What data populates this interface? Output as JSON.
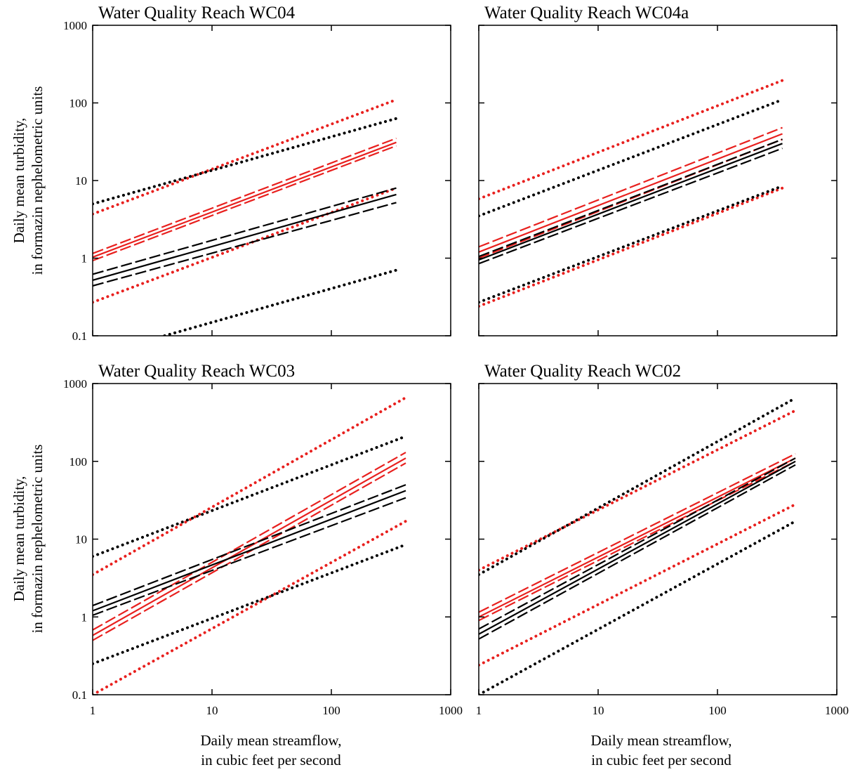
{
  "figure": {
    "ylabel_line1": "Daily mean turbidity,",
    "ylabel_line2": "in formazin nephelometric units",
    "xlabel_line1": "Daily mean streamflow,",
    "xlabel_line2": "in cubic feet per second",
    "colors": {
      "red": "#e8201e",
      "black": "#000000"
    }
  },
  "chart_data": [
    {
      "type": "line",
      "title": "Water Quality Reach WC04",
      "xscale": "log",
      "yscale": "log",
      "xlim": [
        1,
        1000
      ],
      "ylim": [
        0.1,
        1000
      ],
      "xticks": [],
      "yticks": [
        "0.1",
        "1",
        "10",
        "100",
        "1000"
      ],
      "series": [
        {
          "color": "red",
          "style": "dotted",
          "x": [
            1,
            350
          ],
          "y": [
            3.7,
            110
          ]
        },
        {
          "color": "red",
          "style": "dotted",
          "x": [
            1,
            350
          ],
          "y": [
            0.27,
            8
          ]
        },
        {
          "color": "red",
          "style": "dashed",
          "x": [
            1,
            350
          ],
          "y": [
            1.15,
            35
          ]
        },
        {
          "color": "red",
          "style": "dashed",
          "x": [
            1,
            350
          ],
          "y": [
            0.93,
            28
          ]
        },
        {
          "color": "red",
          "style": "solid",
          "x": [
            1,
            350
          ],
          "y": [
            1.03,
            31
          ]
        },
        {
          "color": "black",
          "style": "dotted",
          "x": [
            1,
            350
          ],
          "y": [
            5,
            63
          ]
        },
        {
          "color": "black",
          "style": "dotted",
          "x": [
            4,
            350
          ],
          "y": [
            0.1,
            0.7
          ]
        },
        {
          "color": "black",
          "style": "dashed",
          "x": [
            1,
            350
          ],
          "y": [
            0.62,
            8
          ]
        },
        {
          "color": "black",
          "style": "dashed",
          "x": [
            1,
            350
          ],
          "y": [
            0.44,
            5.2
          ]
        },
        {
          "color": "black",
          "style": "solid",
          "x": [
            1,
            350
          ],
          "y": [
            0.52,
            6.6
          ]
        }
      ]
    },
    {
      "type": "line",
      "title": "Water Quality Reach WC04a",
      "xscale": "log",
      "yscale": "log",
      "xlim": [
        1,
        1000
      ],
      "ylim": [
        0.1,
        1000
      ],
      "xticks": [],
      "yticks": [],
      "series": [
        {
          "color": "red",
          "style": "dotted",
          "x": [
            1,
            350
          ],
          "y": [
            5.8,
            195
          ]
        },
        {
          "color": "red",
          "style": "dotted",
          "x": [
            1,
            350
          ],
          "y": [
            0.24,
            8
          ]
        },
        {
          "color": "red",
          "style": "dashed",
          "x": [
            1,
            350
          ],
          "y": [
            1.4,
            48
          ]
        },
        {
          "color": "red",
          "style": "dashed",
          "x": [
            1,
            350
          ],
          "y": [
            1.0,
            34
          ]
        },
        {
          "color": "red",
          "style": "solid",
          "x": [
            1,
            350
          ],
          "y": [
            1.2,
            40
          ]
        },
        {
          "color": "black",
          "style": "dotted",
          "x": [
            1,
            350
          ],
          "y": [
            3.5,
            110
          ]
        },
        {
          "color": "black",
          "style": "dotted",
          "x": [
            1,
            350
          ],
          "y": [
            0.27,
            8.5
          ]
        },
        {
          "color": "black",
          "style": "dashed",
          "x": [
            1,
            350
          ],
          "y": [
            1.05,
            34
          ]
        },
        {
          "color": "black",
          "style": "dashed",
          "x": [
            1,
            350
          ],
          "y": [
            0.85,
            26
          ]
        },
        {
          "color": "black",
          "style": "solid",
          "x": [
            1,
            350
          ],
          "y": [
            0.95,
            30
          ]
        }
      ]
    },
    {
      "type": "line",
      "title": "Water Quality Reach WC03",
      "xscale": "log",
      "yscale": "log",
      "xlim": [
        1,
        1000
      ],
      "ylim": [
        0.1,
        1000
      ],
      "xticks": [
        "1",
        "10",
        "100",
        "1000"
      ],
      "yticks": [
        "0.1",
        "1",
        "10",
        "100",
        "1000"
      ],
      "series": [
        {
          "color": "red",
          "style": "dotted",
          "x": [
            1,
            420
          ],
          "y": [
            3.5,
            660
          ]
        },
        {
          "color": "red",
          "style": "dotted",
          "x": [
            1,
            420
          ],
          "y": [
            0.1,
            17
          ]
        },
        {
          "color": "red",
          "style": "dashed",
          "x": [
            1,
            420
          ],
          "y": [
            0.68,
            130
          ]
        },
        {
          "color": "red",
          "style": "dashed",
          "x": [
            1,
            420
          ],
          "y": [
            0.5,
            95
          ]
        },
        {
          "color": "red",
          "style": "solid",
          "x": [
            1,
            420
          ],
          "y": [
            0.58,
            110
          ]
        },
        {
          "color": "black",
          "style": "dotted",
          "x": [
            1,
            420
          ],
          "y": [
            6,
            210
          ]
        },
        {
          "color": "black",
          "style": "dotted",
          "x": [
            1,
            420
          ],
          "y": [
            0.25,
            8.5
          ]
        },
        {
          "color": "black",
          "style": "dashed",
          "x": [
            1,
            420
          ],
          "y": [
            1.4,
            50
          ]
        },
        {
          "color": "black",
          "style": "dashed",
          "x": [
            1,
            420
          ],
          "y": [
            1.05,
            34
          ]
        },
        {
          "color": "black",
          "style": "solid",
          "x": [
            1,
            420
          ],
          "y": [
            1.2,
            42
          ]
        }
      ]
    },
    {
      "type": "line",
      "title": "Water Quality Reach WC02",
      "xscale": "log",
      "yscale": "log",
      "xlim": [
        1,
        1000
      ],
      "ylim": [
        0.1,
        1000
      ],
      "xticks": [
        "1",
        "10",
        "100",
        "1000"
      ],
      "yticks": [],
      "series": [
        {
          "color": "red",
          "style": "dotted",
          "x": [
            1,
            450
          ],
          "y": [
            4,
            450
          ]
        },
        {
          "color": "red",
          "style": "dotted",
          "x": [
            1,
            450
          ],
          "y": [
            0.24,
            28
          ]
        },
        {
          "color": "red",
          "style": "dashed",
          "x": [
            1,
            450
          ],
          "y": [
            1.15,
            125
          ]
        },
        {
          "color": "red",
          "style": "dashed",
          "x": [
            1,
            450
          ],
          "y": [
            0.9,
            100
          ]
        },
        {
          "color": "red",
          "style": "solid",
          "x": [
            1,
            450
          ],
          "y": [
            1.0,
            110
          ]
        },
        {
          "color": "black",
          "style": "dotted",
          "x": [
            1,
            450
          ],
          "y": [
            3.5,
            650
          ]
        },
        {
          "color": "black",
          "style": "dotted",
          "x": [
            1,
            450
          ],
          "y": [
            0.1,
            17
          ]
        },
        {
          "color": "black",
          "style": "dashed",
          "x": [
            1,
            450
          ],
          "y": [
            0.7,
            110
          ]
        },
        {
          "color": "black",
          "style": "dashed",
          "x": [
            1,
            450
          ],
          "y": [
            0.52,
            90
          ]
        },
        {
          "color": "black",
          "style": "solid",
          "x": [
            1,
            450
          ],
          "y": [
            0.6,
            100
          ]
        }
      ]
    }
  ]
}
